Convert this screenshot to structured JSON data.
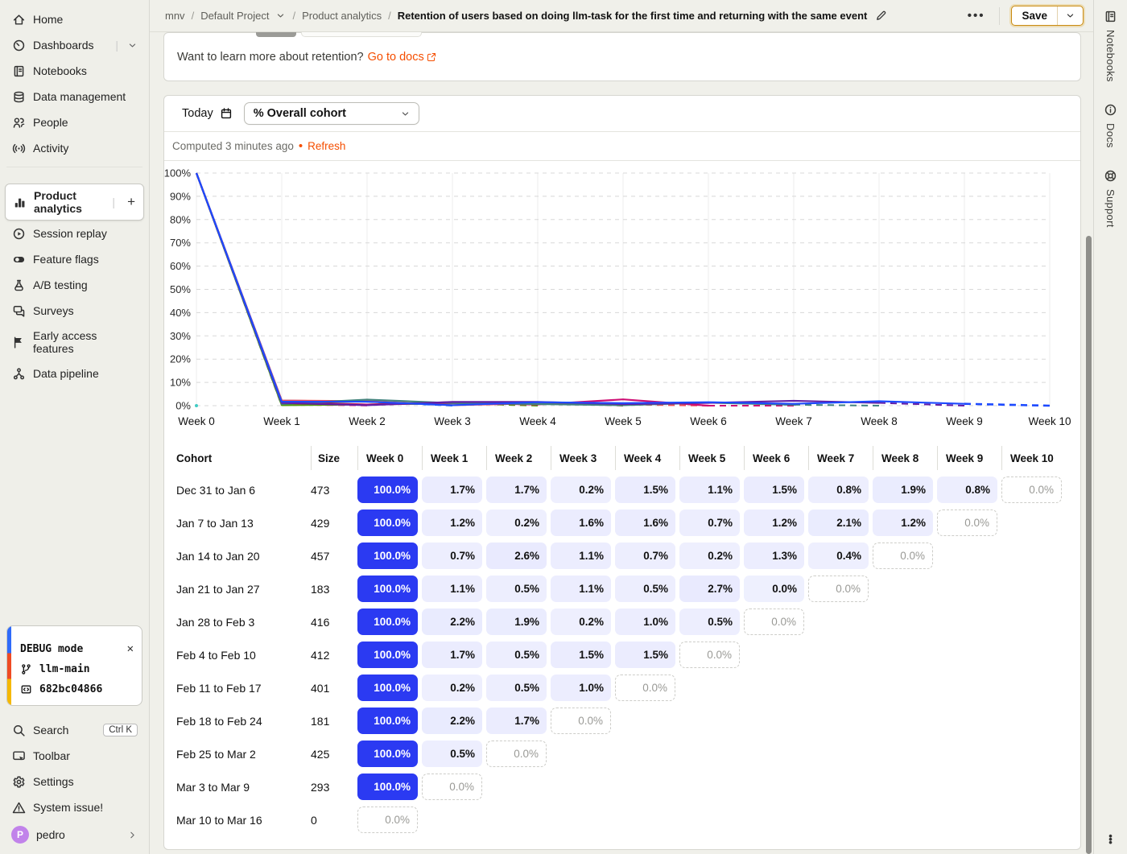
{
  "breadcrumb": {
    "org": "mnv",
    "project": "Default Project",
    "section": "Product analytics",
    "title": "Retention of users based on doing llm-task for the first time and returning with the same event"
  },
  "topbar": {
    "more_label": "...",
    "save_label": "Save"
  },
  "sidebar": {
    "items": [
      {
        "label": "Home",
        "icon": "home-icon"
      },
      {
        "label": "Dashboards",
        "icon": "dashboard-icon",
        "chevron": true
      },
      {
        "label": "Notebooks",
        "icon": "notebook-icon"
      },
      {
        "label": "Data management",
        "icon": "database-icon"
      },
      {
        "label": "People",
        "icon": "people-icon"
      },
      {
        "label": "Activity",
        "icon": "activity-icon"
      },
      {
        "label": "Product analytics",
        "icon": "bar-chart-icon",
        "active": true,
        "plus": true
      },
      {
        "label": "Session replay",
        "icon": "play-circle-icon"
      },
      {
        "label": "Feature flags",
        "icon": "toggle-icon"
      },
      {
        "label": "A/B testing",
        "icon": "flask-icon"
      },
      {
        "label": "Surveys",
        "icon": "chat-icon"
      },
      {
        "label": "Early access features",
        "icon": "flag-icon"
      },
      {
        "label": "Data pipeline",
        "icon": "pipeline-icon"
      }
    ]
  },
  "debug_panel": {
    "title": "DEBUG mode",
    "branch": "llm-main",
    "commit": "682bc04866"
  },
  "sidebar_footer": {
    "items": [
      {
        "label": "Search",
        "icon": "search-icon",
        "kbd": "Ctrl K"
      },
      {
        "label": "Toolbar",
        "icon": "toolbar-icon"
      },
      {
        "label": "Settings",
        "icon": "gear-icon"
      },
      {
        "label": "System issue!",
        "icon": "warning-icon"
      }
    ],
    "user": {
      "name": "pedro",
      "initial": "P"
    }
  },
  "right_rail": {
    "items": [
      {
        "label": "Notebooks",
        "icon": "notebook-icon"
      },
      {
        "label": "Docs",
        "icon": "info-icon"
      },
      {
        "label": "Support",
        "icon": "support-icon"
      }
    ]
  },
  "banner": {
    "text": "Want to learn more about retention?",
    "link_label": "Go to docs"
  },
  "controls": {
    "date_label": "Today",
    "cohort_filter": "% Overall cohort"
  },
  "status": {
    "computed_text": "Computed 3 minutes ago",
    "refresh_label": "Refresh"
  },
  "colors": {
    "accent_blue": "#2b3af2",
    "link_orange": "#f54e00",
    "cell_tint": "43,58,242"
  },
  "chart_data": {
    "type": "line",
    "title": "Retention of users based on doing llm-task for the first time and returning with the same event",
    "x": [
      "Week 0",
      "Week 1",
      "Week 2",
      "Week 3",
      "Week 4",
      "Week 5",
      "Week 6",
      "Week 7",
      "Week 8",
      "Week 9",
      "Week 10"
    ],
    "ylabel": "% Overall cohort",
    "ylim": [
      0,
      100
    ],
    "ytick_step": 10,
    "grid": true,
    "legend_position": "none",
    "series": [
      {
        "name": "Dec 31 to Jan 6",
        "color": "#1d4aff",
        "values": [
          100.0,
          1.7,
          1.7,
          0.2,
          1.5,
          1.1,
          1.5,
          0.8,
          1.9,
          0.8,
          0.0
        ]
      },
      {
        "name": "Jan 7 to Jan 13",
        "color": "#621da6",
        "values": [
          100.0,
          1.2,
          0.2,
          1.6,
          1.6,
          0.7,
          1.2,
          2.1,
          1.2,
          0.0
        ]
      },
      {
        "name": "Jan 14 to Jan 20",
        "color": "#42827e",
        "values": [
          100.0,
          0.7,
          2.6,
          1.1,
          0.7,
          0.2,
          1.3,
          0.4,
          0.0
        ]
      },
      {
        "name": "Jan 21 to Jan 27",
        "color": "#ce0e74",
        "values": [
          100.0,
          1.1,
          0.5,
          1.1,
          0.5,
          2.7,
          0.0,
          0.0
        ]
      },
      {
        "name": "Jan 28 to Feb 3",
        "color": "#f14f58",
        "values": [
          100.0,
          2.2,
          1.9,
          0.2,
          1.0,
          0.5,
          0.0
        ]
      },
      {
        "name": "Feb 4 to Feb 10",
        "color": "#7c440e",
        "values": [
          100.0,
          1.7,
          0.5,
          1.5,
          1.5,
          0.0
        ]
      },
      {
        "name": "Feb 11 to Feb 17",
        "color": "#529a0a",
        "values": [
          100.0,
          0.2,
          0.5,
          1.0,
          0.0
        ]
      },
      {
        "name": "Feb 18 to Feb 24",
        "color": "#0476fb",
        "values": [
          100.0,
          2.2,
          1.7,
          0.0
        ]
      },
      {
        "name": "Feb 25 to Mar 2",
        "color": "#fe729d",
        "values": [
          100.0,
          0.5,
          0.0
        ]
      },
      {
        "name": "Mar 3 to Mar 9",
        "color": "#35416b",
        "values": [
          100.0,
          0.0
        ]
      },
      {
        "name": "Mar 10 to Mar 16",
        "color": "#41cbc4",
        "values": [
          0.0
        ]
      }
    ]
  },
  "table": {
    "headers": [
      "Cohort",
      "Size",
      "Week 0",
      "Week 1",
      "Week 2",
      "Week 3",
      "Week 4",
      "Week 5",
      "Week 6",
      "Week 7",
      "Week 8",
      "Week 9",
      "Week 10"
    ],
    "rows": [
      {
        "cohort": "Dec 31 to Jan 6",
        "size": "473",
        "values": [
          100.0,
          1.7,
          1.7,
          0.2,
          1.5,
          1.1,
          1.5,
          0.8,
          1.9,
          0.8,
          0.0
        ]
      },
      {
        "cohort": "Jan 7 to Jan 13",
        "size": "429",
        "values": [
          100.0,
          1.2,
          0.2,
          1.6,
          1.6,
          0.7,
          1.2,
          2.1,
          1.2,
          0.0
        ]
      },
      {
        "cohort": "Jan 14 to Jan 20",
        "size": "457",
        "values": [
          100.0,
          0.7,
          2.6,
          1.1,
          0.7,
          0.2,
          1.3,
          0.4,
          0.0
        ]
      },
      {
        "cohort": "Jan 21 to Jan 27",
        "size": "183",
        "values": [
          100.0,
          1.1,
          0.5,
          1.1,
          0.5,
          2.7,
          0.0,
          0.0
        ]
      },
      {
        "cohort": "Jan 28 to Feb 3",
        "size": "416",
        "values": [
          100.0,
          2.2,
          1.9,
          0.2,
          1.0,
          0.5,
          0.0
        ]
      },
      {
        "cohort": "Feb 4 to Feb 10",
        "size": "412",
        "values": [
          100.0,
          1.7,
          0.5,
          1.5,
          1.5,
          0.0
        ]
      },
      {
        "cohort": "Feb 11 to Feb 17",
        "size": "401",
        "values": [
          100.0,
          0.2,
          0.5,
          1.0,
          0.0
        ]
      },
      {
        "cohort": "Feb 18 to Feb 24",
        "size": "181",
        "values": [
          100.0,
          2.2,
          1.7,
          0.0
        ]
      },
      {
        "cohort": "Feb 25 to Mar 2",
        "size": "425",
        "values": [
          100.0,
          0.5,
          0.0
        ]
      },
      {
        "cohort": "Mar 3 to Mar 9",
        "size": "293",
        "values": [
          100.0,
          0.0
        ]
      },
      {
        "cohort": "Mar 10 to Mar 16",
        "size": "0",
        "values": [
          0.0
        ]
      }
    ]
  }
}
